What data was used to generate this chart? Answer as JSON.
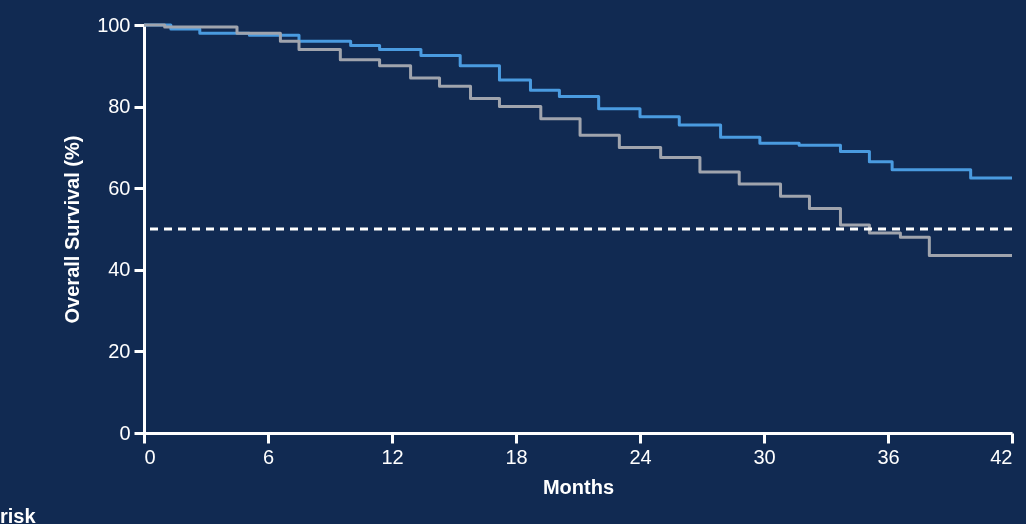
{
  "chart_data": {
    "type": "step",
    "xlabel": "Months",
    "ylabel": "Overall Survival (%)",
    "xlim": [
      0,
      42
    ],
    "xticks": [
      0,
      6,
      12,
      18,
      24,
      30,
      36,
      42
    ],
    "ylim": [
      0,
      100
    ],
    "yticks": [
      0,
      20,
      40,
      60,
      80,
      100
    ],
    "grid": false,
    "marker": "none",
    "line_style": "solid",
    "series": [
      {
        "color": "#4a9be0",
        "x": [
          0,
          1.3,
          2.7,
          5.1,
          7.5,
          10,
          11.4,
          13.4,
          15.3,
          17.2,
          18.7,
          20.1,
          22,
          24,
          25.9,
          27.9,
          29.8,
          31.7,
          33.7,
          35.1,
          36.2,
          40,
          42
        ],
        "values": [
          100,
          99,
          98,
          97.5,
          96,
          95,
          94,
          92.5,
          90,
          86.5,
          84,
          82.5,
          79.5,
          77.5,
          75.5,
          72.5,
          71,
          70.5,
          69,
          66.5,
          64.5,
          62.5,
          62.5
        ]
      },
      {
        "color": "#a0a4ad",
        "x": [
          0,
          1,
          4.5,
          6.6,
          7.5,
          9.5,
          11.4,
          12.9,
          14.3,
          15.8,
          17.2,
          19.2,
          21.1,
          23,
          25,
          26.9,
          28.8,
          30.8,
          32.2,
          33.7,
          35.1,
          36.6,
          38,
          42
        ],
        "values": [
          100,
          99.5,
          98,
          96,
          94,
          91.5,
          90,
          87,
          85,
          82,
          80,
          77,
          73,
          70,
          67.5,
          64,
          61,
          58,
          55,
          51,
          49,
          48,
          43.5,
          43.5
        ]
      }
    ],
    "ref_lines": [
      {
        "axis": "y",
        "value": 50,
        "color": "#ffffff",
        "line_style": "dashed"
      }
    ],
    "annotations": [
      "risk"
    ]
  }
}
